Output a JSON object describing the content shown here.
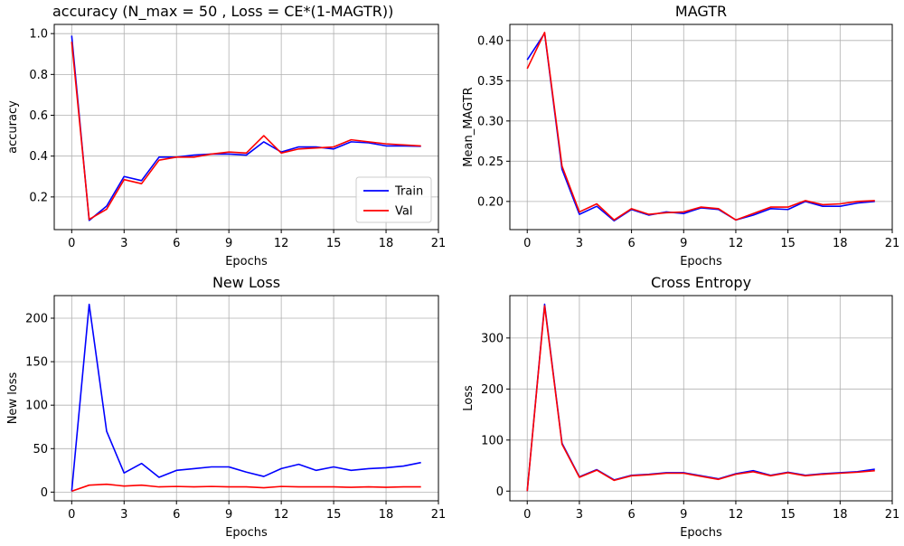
{
  "colors": {
    "train": "#0000ff",
    "val": "#ff0000",
    "grid": "#b0b0b0"
  },
  "chart_data": [
    {
      "type": "line",
      "title": "accuracy      (N_max = 50  ,  Loss = CE*(1-MAGTR))",
      "xlabel": "Epochs",
      "ylabel": "accuracy",
      "xlim": [
        -1,
        21
      ],
      "ylim": [
        0.04,
        1.045
      ],
      "xticks": [
        0,
        3,
        6,
        9,
        12,
        15,
        18,
        21
      ],
      "yticks": [
        0.2,
        0.4,
        0.6,
        0.8,
        1.0
      ],
      "ytick_labels": [
        "0.2",
        "0.4",
        "0.6",
        "0.8",
        "1.0"
      ],
      "grid": true,
      "legend": {
        "position": "lower-right",
        "entries": [
          "Train",
          "Val"
        ]
      },
      "x": [
        0,
        1,
        2,
        3,
        4,
        5,
        6,
        7,
        8,
        9,
        10,
        11,
        12,
        13,
        14,
        15,
        16,
        17,
        18,
        19,
        20
      ],
      "series": [
        {
          "name": "Train",
          "color": "#0000ff",
          "values": [
            0.99,
            0.085,
            0.155,
            0.3,
            0.28,
            0.395,
            0.395,
            0.405,
            0.41,
            0.41,
            0.405,
            0.47,
            0.42,
            0.445,
            0.445,
            0.435,
            0.47,
            0.465,
            0.45,
            0.45,
            0.448
          ]
        },
        {
          "name": "Val",
          "color": "#ff0000",
          "values": [
            0.96,
            0.09,
            0.14,
            0.285,
            0.265,
            0.38,
            0.395,
            0.395,
            0.41,
            0.42,
            0.415,
            0.5,
            0.415,
            0.435,
            0.44,
            0.445,
            0.48,
            0.47,
            0.46,
            0.455,
            0.45
          ]
        }
      ]
    },
    {
      "type": "line",
      "title": "MAGTR",
      "xlabel": "Epochs",
      "ylabel": "Mean_MAGTR",
      "xlim": [
        -1,
        21
      ],
      "ylim": [
        0.165,
        0.42
      ],
      "xticks": [
        0,
        3,
        6,
        9,
        12,
        15,
        18,
        21
      ],
      "yticks": [
        0.2,
        0.25,
        0.3,
        0.35,
        0.4
      ],
      "ytick_labels": [
        "0.20",
        "0.25",
        "0.30",
        "0.35",
        "0.40"
      ],
      "grid": true,
      "x": [
        0,
        1,
        2,
        3,
        4,
        5,
        6,
        7,
        8,
        9,
        10,
        11,
        12,
        13,
        14,
        15,
        16,
        17,
        18,
        19,
        20
      ],
      "series": [
        {
          "name": "Train",
          "color": "#0000ff",
          "values": [
            0.376,
            0.409,
            0.24,
            0.184,
            0.194,
            0.176,
            0.19,
            0.183,
            0.187,
            0.185,
            0.192,
            0.19,
            0.177,
            0.183,
            0.191,
            0.19,
            0.2,
            0.194,
            0.194,
            0.198,
            0.2
          ]
        },
        {
          "name": "Val",
          "color": "#ff0000",
          "values": [
            0.365,
            0.41,
            0.244,
            0.187,
            0.197,
            0.177,
            0.191,
            0.184,
            0.186,
            0.187,
            0.193,
            0.191,
            0.177,
            0.185,
            0.193,
            0.193,
            0.201,
            0.196,
            0.197,
            0.2,
            0.201
          ]
        }
      ]
    },
    {
      "type": "line",
      "title": "New Loss",
      "xlabel": "Epochs",
      "ylabel": "New loss",
      "xlim": [
        -1,
        21
      ],
      "ylim": [
        -10,
        226
      ],
      "xticks": [
        0,
        3,
        6,
        9,
        12,
        15,
        18,
        21
      ],
      "yticks": [
        0,
        50,
        100,
        150,
        200
      ],
      "ytick_labels": [
        "0",
        "50",
        "100",
        "150",
        "200"
      ],
      "grid": true,
      "x": [
        0,
        1,
        2,
        3,
        4,
        5,
        6,
        7,
        8,
        9,
        10,
        11,
        12,
        13,
        14,
        15,
        16,
        17,
        18,
        19,
        20
      ],
      "series": [
        {
          "name": "Train",
          "color": "#0000ff",
          "values": [
            1,
            216,
            70,
            22,
            33,
            17,
            25,
            27,
            29,
            29,
            23,
            18,
            27,
            32,
            25,
            29,
            25,
            27,
            28,
            30,
            34
          ]
        },
        {
          "name": "Val",
          "color": "#ff0000",
          "values": [
            1,
            8,
            9,
            7,
            8,
            6,
            6.5,
            6,
            6.5,
            6,
            6,
            5,
            6.5,
            6,
            6,
            6,
            5.5,
            6,
            5.5,
            6,
            6
          ]
        }
      ]
    },
    {
      "type": "line",
      "title": "Cross Entropy",
      "xlabel": "Epochs",
      "ylabel": "Loss",
      "xlim": [
        -1,
        21
      ],
      "ylim": [
        -19,
        383
      ],
      "xticks": [
        0,
        3,
        6,
        9,
        12,
        15,
        18,
        21
      ],
      "yticks": [
        0,
        100,
        200,
        300
      ],
      "ytick_labels": [
        "0",
        "100",
        "200",
        "300"
      ],
      "grid": true,
      "x": [
        0,
        1,
        2,
        3,
        4,
        5,
        6,
        7,
        8,
        9,
        10,
        11,
        12,
        13,
        14,
        15,
        16,
        17,
        18,
        19,
        20
      ],
      "series": [
        {
          "name": "Train",
          "color": "#0000ff",
          "values": [
            0,
            366,
            94,
            28,
            42,
            22,
            31,
            33,
            36,
            36,
            30,
            24,
            34,
            40,
            31,
            37,
            31,
            34,
            36,
            38,
            43
          ]
        },
        {
          "name": "Val",
          "color": "#ff0000",
          "values": [
            0,
            363,
            92,
            27,
            41,
            21,
            30,
            32,
            35,
            35,
            29,
            23,
            33,
            38,
            30,
            36,
            30,
            33,
            35,
            37,
            40
          ]
        }
      ]
    }
  ]
}
